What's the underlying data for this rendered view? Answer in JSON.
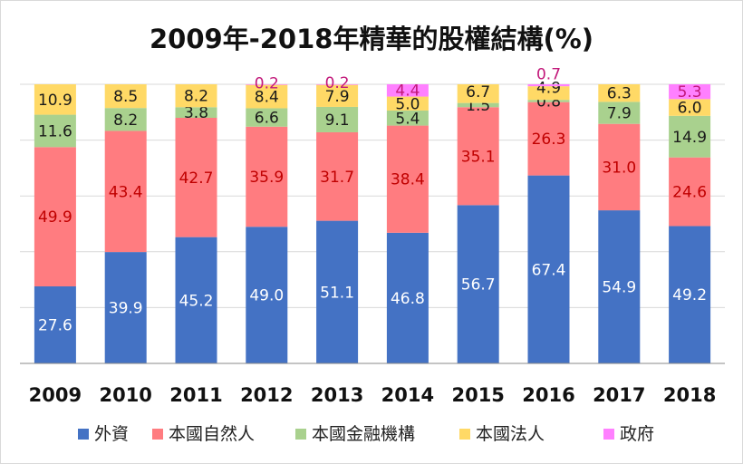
{
  "chart_data": {
    "type": "bar",
    "stacked": true,
    "percent_stacked": true,
    "title": "2009年-2018年精華的股權結構(%)",
    "xlabel": "",
    "ylabel": "",
    "ylim": [
      0,
      100
    ],
    "grid": true,
    "legend_position": "bottom",
    "categories": [
      "2009",
      "2010",
      "2011",
      "2012",
      "2013",
      "2014",
      "2015",
      "2016",
      "2017",
      "2018"
    ],
    "series": [
      {
        "name": "外資",
        "color": "#4472C4",
        "values": [
          27.6,
          39.9,
          45.2,
          49.0,
          51.1,
          46.8,
          56.7,
          67.4,
          54.9,
          49.2
        ],
        "labels": [
          "27.6",
          "39.9",
          "45.2",
          "49.0",
          "51.1",
          "46.8",
          "56.7",
          "67.4",
          "54.9",
          "49.2"
        ]
      },
      {
        "name": "本國自然人",
        "color": "#FF7C80",
        "values": [
          49.9,
          43.4,
          42.7,
          35.9,
          31.7,
          38.4,
          35.1,
          26.3,
          31.0,
          24.6
        ],
        "labels": [
          "49.9",
          "43.4",
          "42.7",
          "35.9",
          "31.7",
          "38.4",
          "35.1",
          "26.3",
          "31.0",
          "24.6"
        ]
      },
      {
        "name": "本國金融機構",
        "color": "#A9D18E",
        "values": [
          11.6,
          8.2,
          3.8,
          6.6,
          9.1,
          5.4,
          1.5,
          0.8,
          7.9,
          14.9
        ],
        "labels": [
          "11.6",
          "8.2",
          "3.8",
          "6.6",
          "9.1",
          "5.4",
          "1.5",
          "0.8",
          "7.9",
          "14.9"
        ]
      },
      {
        "name": "本國法人",
        "color": "#FFD966",
        "values": [
          10.9,
          8.5,
          8.2,
          8.4,
          7.9,
          5.0,
          6.7,
          4.9,
          6.3,
          6.0
        ],
        "labels": [
          "10.9",
          "8.5",
          "8.2",
          "8.4",
          "7.9",
          "5.0",
          "6.7",
          "4.9",
          "6.3",
          "6.0"
        ]
      },
      {
        "name": "政府",
        "color": "#FF80FF",
        "values": [
          0,
          0,
          0,
          0.2,
          0.2,
          4.4,
          0,
          0.7,
          0,
          5.3
        ],
        "labels": [
          "",
          "",
          "",
          "0.2",
          "0.2",
          "4.4",
          "",
          "0.7",
          "",
          "5.3"
        ]
      }
    ]
  }
}
